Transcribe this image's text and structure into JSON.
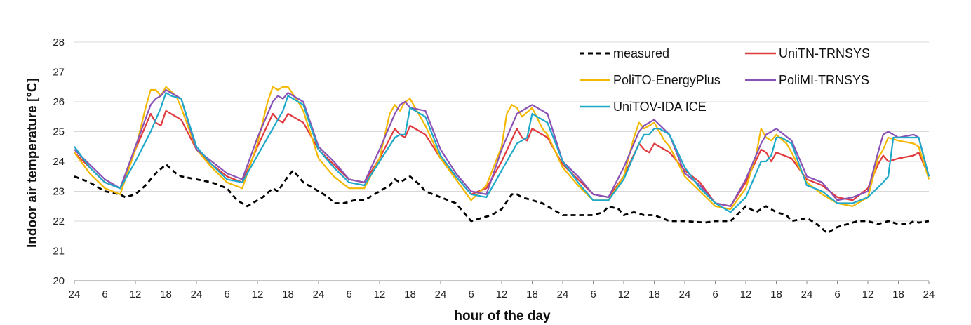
{
  "chart_data": {
    "type": "line",
    "title": "",
    "xlabel": "hour of the day",
    "ylabel": "Indoor air temperature [°C]",
    "ylim": [
      20,
      28
    ],
    "yticks": [
      20,
      21,
      22,
      23,
      24,
      25,
      26,
      27,
      28
    ],
    "xticks": [
      "24",
      "6",
      "12",
      "18",
      "24",
      "6",
      "12",
      "18",
      "24",
      "6",
      "12",
      "18",
      "24",
      "6",
      "12",
      "18",
      "24",
      "6",
      "12",
      "18",
      "24",
      "6",
      "12",
      "18",
      "24",
      "6",
      "12",
      "18",
      "24"
    ],
    "x_hours": [
      0,
      6,
      12,
      18,
      24,
      30,
      36,
      42,
      48,
      54,
      60,
      66,
      72,
      78,
      84,
      90,
      96,
      102,
      108,
      114,
      120,
      126,
      132,
      138,
      144,
      150,
      156,
      162,
      168
    ],
    "xlim": [
      0,
      168
    ],
    "grid": "horizontal",
    "legend_position": "top-right",
    "series": [
      {
        "name": "measured",
        "color": "#000000",
        "dash": "dashed",
        "x": [
          0,
          3,
          6,
          9,
          10,
          12,
          14,
          16,
          18,
          20,
          21,
          24,
          27,
          30,
          32,
          34,
          35,
          37,
          39,
          40,
          42,
          43,
          45,
          47,
          48,
          50,
          51,
          53,
          55,
          57,
          60,
          62,
          63,
          64,
          66,
          68,
          69,
          72,
          75,
          78,
          80,
          82,
          84,
          86,
          87,
          88,
          90,
          92,
          94,
          96,
          98,
          100,
          102,
          104,
          105,
          107,
          108,
          110,
          112,
          114,
          117,
          120,
          124,
          126,
          129,
          132,
          134,
          136,
          138,
          140,
          141,
          144,
          146,
          148,
          150,
          152,
          154,
          156,
          158,
          160,
          162,
          164,
          165,
          166,
          168
        ],
        "y": [
          23.5,
          23.3,
          23.0,
          22.9,
          22.8,
          22.9,
          23.2,
          23.6,
          23.9,
          23.6,
          23.5,
          23.4,
          23.3,
          23.1,
          22.7,
          22.5,
          22.6,
          22.8,
          23.1,
          23.0,
          23.5,
          23.7,
          23.3,
          23.1,
          23.0,
          22.8,
          22.6,
          22.6,
          22.7,
          22.7,
          23.0,
          23.2,
          23.4,
          23.3,
          23.5,
          23.2,
          23.0,
          22.8,
          22.6,
          22.0,
          22.1,
          22.2,
          22.4,
          22.9,
          22.9,
          22.8,
          22.7,
          22.6,
          22.4,
          22.2,
          22.2,
          22.2,
          22.2,
          22.3,
          22.5,
          22.4,
          22.2,
          22.3,
          22.2,
          22.2,
          22.0,
          22.0,
          21.95,
          22.0,
          22.0,
          22.5,
          22.3,
          22.5,
          22.3,
          22.2,
          22.0,
          22.1,
          21.9,
          21.6,
          21.8,
          21.9,
          22.0,
          22.0,
          21.9,
          22.0,
          21.9,
          21.9,
          22.0,
          21.95,
          22.0
        ]
      },
      {
        "name": "UniTN-TRNSYS",
        "color": "#e03a3e",
        "dash": "solid",
        "x": [
          0,
          3,
          6,
          9,
          12,
          15,
          16,
          17,
          18,
          21,
          24,
          27,
          30,
          33,
          36,
          39,
          40,
          41,
          42,
          45,
          48,
          51,
          54,
          57,
          60,
          63,
          64,
          65,
          66,
          69,
          72,
          75,
          78,
          81,
          84,
          87,
          88,
          89,
          90,
          93,
          96,
          99,
          102,
          105,
          108,
          111,
          112,
          113,
          114,
          117,
          120,
          123,
          126,
          129,
          132,
          135,
          136,
          137,
          138,
          141,
          144,
          147,
          150,
          153,
          156,
          158,
          159,
          160,
          162,
          165,
          166,
          168
        ],
        "y": [
          24.3,
          23.8,
          23.3,
          23.1,
          24.4,
          25.6,
          25.3,
          25.2,
          25.7,
          25.4,
          24.4,
          23.9,
          23.5,
          23.3,
          24.5,
          25.6,
          25.4,
          25.3,
          25.6,
          25.3,
          24.4,
          23.9,
          23.4,
          23.3,
          24.1,
          25.1,
          24.9,
          24.8,
          25.2,
          24.9,
          24.1,
          23.5,
          22.9,
          23.1,
          24.0,
          25.1,
          24.8,
          24.7,
          25.1,
          24.8,
          23.9,
          23.4,
          22.9,
          22.8,
          23.5,
          24.6,
          24.4,
          24.3,
          24.6,
          24.3,
          23.7,
          23.3,
          22.6,
          22.5,
          23.3,
          24.4,
          24.3,
          24.0,
          24.3,
          24.1,
          23.4,
          23.2,
          22.8,
          22.7,
          23.1,
          23.9,
          24.2,
          24.0,
          24.1,
          24.2,
          24.3,
          23.5
        ]
      },
      {
        "name": "PoliTO-EnergyPlus",
        "color": "#f5b800",
        "dash": "solid",
        "x": [
          0,
          3,
          6,
          9,
          12,
          14,
          15,
          16,
          17,
          18,
          20,
          21,
          24,
          27,
          30,
          33,
          36,
          38,
          39,
          40,
          41,
          42,
          44,
          45,
          48,
          51,
          54,
          57,
          60,
          62,
          63,
          64,
          65,
          66,
          68,
          69,
          72,
          75,
          78,
          81,
          84,
          85,
          86,
          87,
          88,
          90,
          92,
          93,
          96,
          99,
          102,
          105,
          108,
          110,
          111,
          112,
          113,
          114,
          116,
          117,
          120,
          123,
          126,
          129,
          132,
          134,
          135,
          136,
          137,
          138,
          140,
          141,
          144,
          147,
          150,
          153,
          156,
          158,
          159,
          160,
          162,
          165,
          166,
          168
        ],
        "y": [
          24.3,
          23.6,
          23.1,
          22.9,
          24.4,
          25.8,
          26.4,
          26.4,
          26.2,
          26.5,
          26.2,
          25.8,
          24.4,
          23.8,
          23.3,
          23.1,
          24.6,
          26.0,
          26.5,
          26.4,
          26.5,
          26.5,
          26.0,
          25.7,
          24.1,
          23.5,
          23.1,
          23.1,
          24.1,
          25.6,
          25.9,
          25.7,
          26.0,
          26.1,
          25.5,
          25.2,
          24.1,
          23.4,
          22.7,
          23.2,
          24.5,
          25.6,
          25.9,
          25.8,
          25.5,
          25.8,
          25.1,
          24.9,
          23.8,
          23.2,
          22.7,
          22.7,
          23.5,
          24.8,
          25.3,
          25.1,
          25.2,
          25.3,
          24.7,
          24.5,
          23.5,
          23.0,
          22.5,
          22.4,
          23.1,
          24.2,
          25.1,
          24.8,
          24.7,
          24.9,
          24.6,
          24.3,
          23.3,
          22.9,
          22.6,
          22.5,
          22.8,
          24.1,
          24.4,
          24.8,
          24.7,
          24.6,
          24.5,
          23.4
        ]
      },
      {
        "name": "PoliMI-TRNSYS",
        "color": "#8a52b5",
        "dash": "solid",
        "x": [
          0,
          3,
          6,
          9,
          12,
          15,
          16,
          17,
          18,
          21,
          24,
          27,
          30,
          33,
          36,
          39,
          40,
          41,
          42,
          45,
          48,
          51,
          54,
          57,
          60,
          63,
          64,
          65,
          66,
          69,
          72,
          75,
          78,
          81,
          84,
          87,
          88,
          89,
          90,
          93,
          96,
          99,
          102,
          105,
          108,
          111,
          112,
          113,
          114,
          117,
          120,
          123,
          126,
          129,
          132,
          135,
          136,
          137,
          138,
          141,
          144,
          147,
          150,
          153,
          156,
          158,
          159,
          160,
          162,
          165,
          166,
          168
        ],
        "y": [
          24.4,
          23.9,
          23.4,
          23.1,
          24.5,
          25.9,
          26.1,
          26.2,
          26.4,
          26.1,
          24.4,
          24.0,
          23.6,
          23.4,
          24.8,
          26.0,
          26.2,
          26.1,
          26.3,
          26.0,
          24.5,
          24.0,
          23.4,
          23.3,
          24.4,
          25.6,
          25.9,
          26.0,
          25.8,
          25.7,
          24.4,
          23.6,
          23.0,
          22.9,
          24.4,
          25.6,
          25.7,
          25.8,
          25.9,
          25.6,
          24.0,
          23.5,
          22.9,
          22.8,
          23.8,
          25.0,
          25.2,
          25.3,
          25.4,
          24.9,
          23.6,
          23.2,
          22.6,
          22.5,
          23.4,
          24.6,
          24.9,
          25.0,
          25.1,
          24.7,
          23.5,
          23.3,
          22.7,
          22.8,
          23.0,
          24.3,
          24.9,
          25.0,
          24.8,
          24.9,
          24.8,
          23.5
        ]
      },
      {
        "name": "UniTOV-IDA ICE",
        "color": "#1fa9c9",
        "dash": "solid",
        "x": [
          0,
          3,
          6,
          9,
          12,
          15,
          16,
          17,
          18,
          19,
          21,
          24,
          27,
          30,
          33,
          36,
          39,
          40,
          41,
          42,
          43,
          45,
          48,
          51,
          54,
          57,
          60,
          63,
          64,
          65,
          66,
          67,
          69,
          72,
          75,
          78,
          81,
          84,
          87,
          88,
          89,
          90,
          91,
          93,
          96,
          99,
          102,
          105,
          108,
          111,
          112,
          113,
          114,
          115,
          117,
          120,
          123,
          126,
          129,
          132,
          135,
          136,
          137,
          138,
          139,
          141,
          144,
          147,
          150,
          153,
          156,
          159,
          160,
          161,
          162,
          165,
          166,
          168
        ],
        "y": [
          24.5,
          23.8,
          23.3,
          23.1,
          24.0,
          25.0,
          25.4,
          25.8,
          26.3,
          26.2,
          26.1,
          24.5,
          23.9,
          23.4,
          23.3,
          24.2,
          25.1,
          25.4,
          25.7,
          26.2,
          26.1,
          25.9,
          24.4,
          23.8,
          23.3,
          23.2,
          24.0,
          24.8,
          24.9,
          24.9,
          25.8,
          25.7,
          25.5,
          24.2,
          23.5,
          22.9,
          22.8,
          23.7,
          24.6,
          24.7,
          24.8,
          25.6,
          25.5,
          25.3,
          24.0,
          23.3,
          22.7,
          22.7,
          23.4,
          24.6,
          24.9,
          24.9,
          25.1,
          25.1,
          24.9,
          23.8,
          23.1,
          22.6,
          22.3,
          22.8,
          24.0,
          24.0,
          24.2,
          24.8,
          24.8,
          24.6,
          23.2,
          23.0,
          22.6,
          22.6,
          22.8,
          23.3,
          23.5,
          24.8,
          24.8,
          24.8,
          24.8,
          23.5
        ]
      }
    ]
  }
}
